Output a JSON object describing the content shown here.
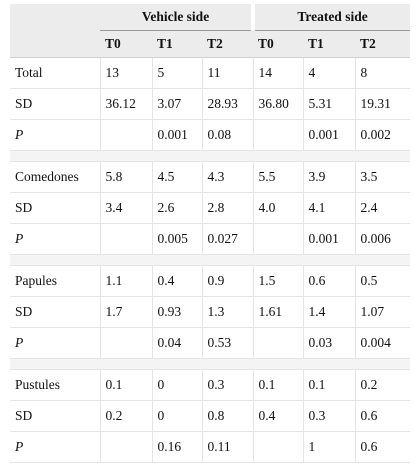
{
  "header": {
    "groups": [
      "Vehicle side",
      "Treated side"
    ],
    "columns": [
      "T0",
      "T1",
      "T2",
      "T0",
      "T1",
      "T2"
    ]
  },
  "sections": [
    {
      "rows": [
        [
          "Total",
          "13",
          "5",
          "11",
          "14",
          "4",
          "8"
        ],
        [
          "SD",
          "36.12",
          "3.07",
          "28.93",
          "36.80",
          "5.31",
          "19.31"
        ],
        [
          "P",
          null,
          "0.001",
          "0.08",
          null,
          "0.001",
          "0.002"
        ]
      ]
    },
    {
      "rows": [
        [
          "Comedones",
          "5.8",
          "4.5",
          "4.3",
          "5.5",
          "3.9",
          "3.5"
        ],
        [
          "SD",
          "3.4",
          "2.6",
          "2.8",
          "4.0",
          "4.1",
          "2.4"
        ],
        [
          "P",
          null,
          "0.005",
          "0.027",
          null,
          "0.001",
          "0.006"
        ]
      ]
    },
    {
      "rows": [
        [
          "Papules",
          "1.1",
          "0.4",
          "0.9",
          "1.5",
          "0.6",
          "0.5"
        ],
        [
          "SD",
          "1.7",
          "0.93",
          "1.3",
          "1.61",
          "1.4",
          "1.07"
        ],
        [
          "P",
          null,
          "0.04",
          "0.53",
          null,
          "0.03",
          "0.004"
        ]
      ]
    },
    {
      "rows": [
        [
          "Pustules",
          "0.1",
          "0",
          "0.3",
          "0.1",
          "0.1",
          "0.2"
        ],
        [
          "SD",
          "0.2",
          "0",
          "0.8",
          "0.4",
          "0.3",
          "0.6"
        ],
        [
          "P",
          null,
          "0.16",
          "0.11",
          null,
          "1",
          "0.6"
        ]
      ]
    }
  ]
}
